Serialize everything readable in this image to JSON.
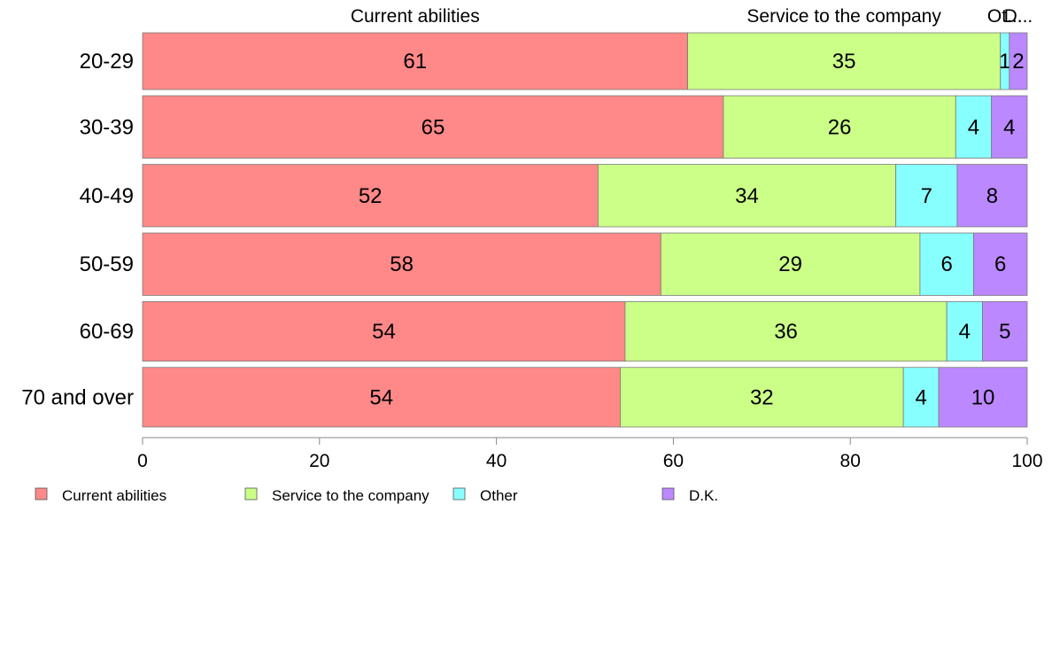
{
  "chart_data": {
    "type": "bar",
    "orientation": "horizontal",
    "stacked": true,
    "categories": [
      "20-29",
      "30-39",
      "40-49",
      "50-59",
      "60-69",
      "70 and over"
    ],
    "series": [
      {
        "name": "Current abilities",
        "color": "#ff8888",
        "values": [
          61,
          65,
          52,
          58,
          54,
          54
        ]
      },
      {
        "name": "Service to the company",
        "color": "#ccff88",
        "values": [
          35,
          26,
          34,
          29,
          36,
          32
        ]
      },
      {
        "name": "Other",
        "color": "#88ffff",
        "values": [
          1,
          4,
          7,
          6,
          4,
          4
        ]
      },
      {
        "name": "D.K.",
        "color": "#bb88ff",
        "values": [
          2,
          4,
          8,
          6,
          5,
          10
        ]
      }
    ],
    "top_labels": [
      "Current abilities",
      "Service to the company",
      "Ot...",
      "D..."
    ],
    "xlim": [
      0,
      100
    ],
    "xticks": [
      "0",
      "20",
      "40",
      "60",
      "80",
      "100"
    ],
    "row_weights": [
      20,
      22,
      22,
      22,
      21,
      21
    ],
    "legend_position": "bottom-left",
    "grid": false
  }
}
